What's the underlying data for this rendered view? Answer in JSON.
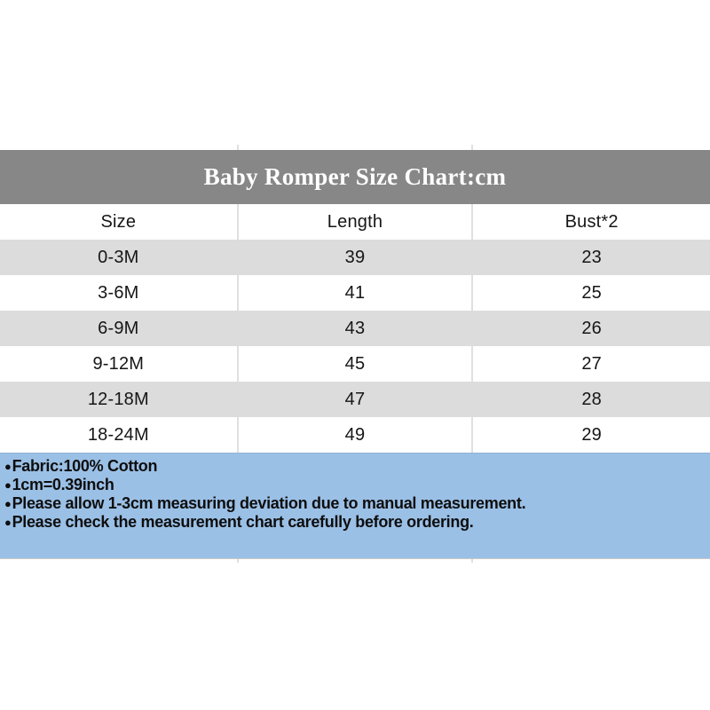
{
  "size_chart": {
    "title": "Baby Romper Size Chart:cm",
    "columns": [
      "Size",
      "Length",
      "Bust*2"
    ],
    "rows": [
      [
        "0-3M",
        "39",
        "23"
      ],
      [
        "3-6M",
        "41",
        "25"
      ],
      [
        "6-9M",
        "43",
        "26"
      ],
      [
        "9-12M",
        "45",
        "27"
      ],
      [
        "12-18M",
        "47",
        "28"
      ],
      [
        "18-24M",
        "49",
        "29"
      ]
    ]
  },
  "notes": {
    "bullet": "●",
    "lines": [
      "Fabric:100% Cotton",
      "1cm=0.39inch",
      "Please allow 1-3cm measuring deviation due to manual measurement.",
      "Please check the measurement chart carefully before ordering."
    ]
  },
  "colors": {
    "title_bar_bg": "#878787",
    "title_text": "#ffffff",
    "zebra_row_bg": "#dcdcdc",
    "notes_bg": "#9bc0e6",
    "divider": "#e0e0e0",
    "table_text": "#161616",
    "notes_text": "#0e0e0e"
  }
}
